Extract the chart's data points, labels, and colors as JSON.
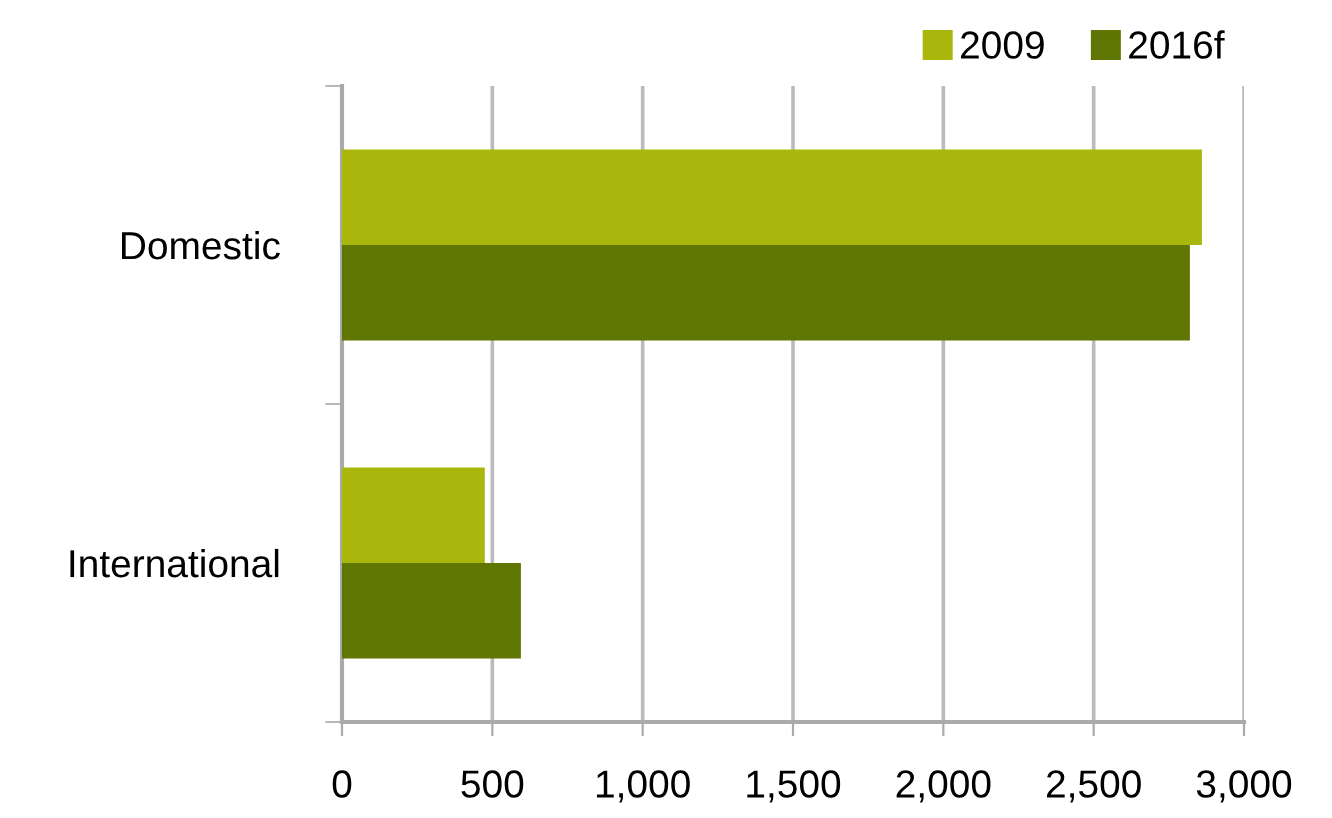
{
  "chart_data": {
    "type": "bar",
    "orientation": "horizontal",
    "categories": [
      "Domestic",
      "International"
    ],
    "series": [
      {
        "name": "2009",
        "color": "#a9b70d",
        "values": [
          2860,
          475
        ]
      },
      {
        "name": "2016f",
        "color": "#5f7702",
        "values": [
          2820,
          595
        ]
      }
    ],
    "xlim": [
      0,
      3000
    ],
    "xticks": [
      {
        "value": 0,
        "label": "0"
      },
      {
        "value": 500,
        "label": "500"
      },
      {
        "value": 1000,
        "label": "1,000"
      },
      {
        "value": 1500,
        "label": "1,500"
      },
      {
        "value": 2000,
        "label": "2,000"
      },
      {
        "value": 2500,
        "label": "2,500"
      },
      {
        "value": 3000,
        "label": "3,000"
      }
    ],
    "grid": "x",
    "legend": "top right"
  }
}
